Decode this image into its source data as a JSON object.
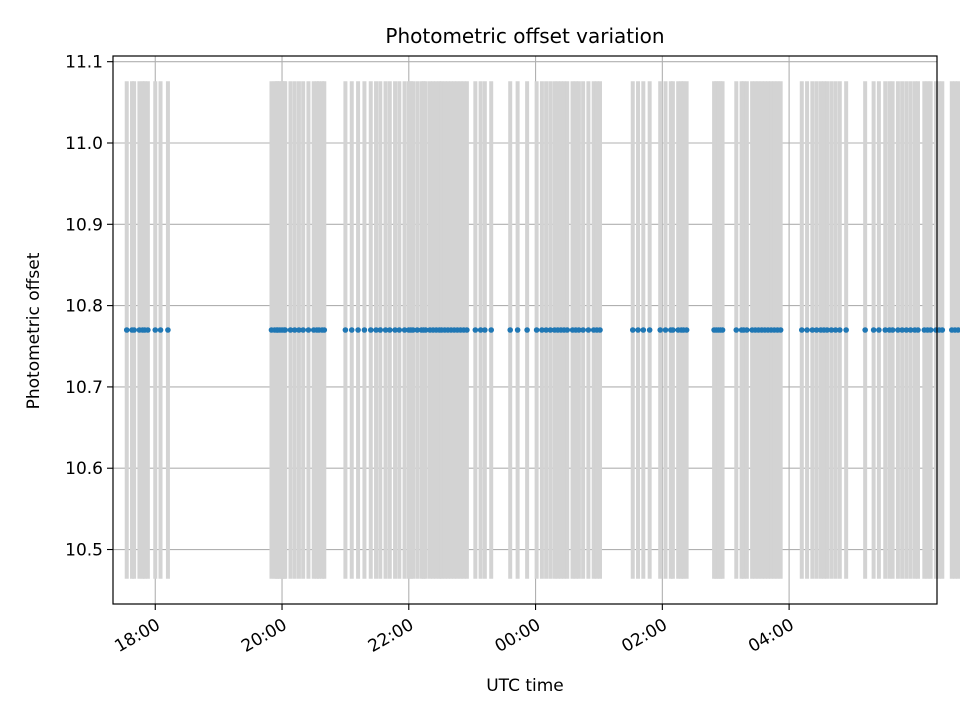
{
  "chart_data": {
    "type": "scatter",
    "title": "Photometric offset variation",
    "xlabel": "UTC time",
    "ylabel": "Photometric offset",
    "x_range": [
      "17:20",
      "06:20"
    ],
    "ylim": [
      10.433,
      11.107
    ],
    "grid": true,
    "colors": {
      "points": "#1f77b4",
      "errorbars": "#d3d3d3"
    },
    "x_ticks": [
      "18:00",
      "20:00",
      "22:00",
      "00:00",
      "02:00",
      "04:00"
    ],
    "y_ticks": [
      "10.5",
      "10.6",
      "10.7",
      "10.8",
      "10.9",
      "11.0",
      "11.1"
    ],
    "y_tick_values": [
      10.5,
      10.6,
      10.7,
      10.8,
      10.9,
      11.0,
      11.1
    ],
    "series": [
      {
        "y": 10.77,
        "error": 0.306,
        "x": [
          "17:33",
          "17:38",
          "17:40",
          "17:45",
          "17:48",
          "17:50",
          "17:53",
          "18:00",
          "18:05",
          "18:12",
          "19:50",
          "19:53",
          "19:56",
          "19:58",
          "20:00",
          "20:03",
          "20:08",
          "20:12",
          "20:16",
          "20:20",
          "20:25",
          "20:30",
          "20:33",
          "20:35",
          "20:38",
          "20:40",
          "21:00",
          "21:06",
          "21:12",
          "21:18",
          "21:24",
          "21:29",
          "21:33",
          "21:38",
          "21:42",
          "21:47",
          "21:51",
          "21:56",
          "22:00",
          "22:04",
          "22:08",
          "22:12",
          "22:16",
          "22:20",
          "22:23",
          "22:26",
          "22:29",
          "22:31",
          "22:34",
          "22:37",
          "22:40",
          "22:43",
          "22:46",
          "22:49",
          "22:52",
          "22:55",
          "23:03",
          "23:08",
          "23:12",
          "23:18",
          "23:36",
          "23:43",
          "00:06",
          "00:10",
          "00:14",
          "00:18",
          "00:21",
          "00:24",
          "00:27",
          "00:30",
          "00:35",
          "00:38",
          "00:41",
          "00:45",
          "00:50",
          "00:55",
          "00:58",
          "01:01",
          "01:32",
          "01:37",
          "01:42",
          "01:48",
          "01:58",
          "02:03",
          "02:08",
          "02:15",
          "02:18",
          "02:23",
          "02:49",
          "02:51",
          "02:53",
          "02:55",
          "02:57",
          "03:15",
          "03:17",
          "03:20",
          "03:25",
          "03:28",
          "03:31",
          "03:34",
          "03:37",
          "03:40",
          "03:43",
          "03:46",
          "03:49",
          "03:52",
          "04:12",
          "04:17",
          "04:22",
          "04:26",
          "04:30",
          "04:33",
          "04:36",
          "04:44",
          "04:48",
          "04:54",
          "05:12",
          "05:20",
          "05:31",
          "05:38",
          "05:43",
          "05:47",
          "05:51",
          "05:55",
          "05:59",
          "06:08",
          "06:11",
          "06:14",
          "06:19",
          "06:22",
          "06:25",
          "06:34",
          "06:37",
          "06:40",
          "06:44",
          "19:55",
          "20:02",
          "22:02",
          "22:14",
          "23:52",
          "00:01",
          "02:10",
          "02:20",
          "03:10",
          "04:40",
          "05:25",
          "05:35",
          "06:02"
        ]
      }
    ]
  }
}
